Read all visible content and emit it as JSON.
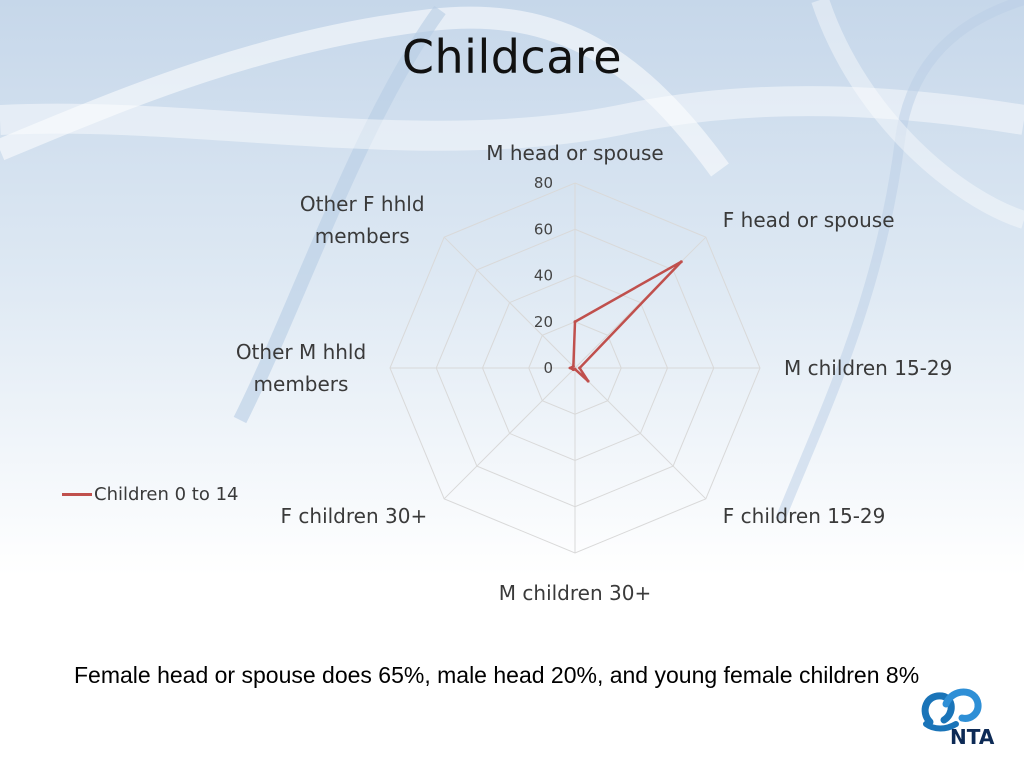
{
  "slide": {
    "title": "Childcare",
    "caption": "Female head or spouse does 65%, male head 20%, and young female children 8%",
    "logo_text": "NTA"
  },
  "colors": {
    "series": "#c0504d",
    "grid": "#d9d9d9",
    "logo_blue": "#1a74b8",
    "logo_dark": "#0d2a55"
  },
  "chart_data": {
    "type": "radar",
    "title": "",
    "categories": [
      "M head or spouse",
      "F head or spouse",
      "M children 15-29",
      "F children 15-29",
      "M children 30+",
      "F children 30+",
      "Other M hhld members",
      "Other F hhld members"
    ],
    "series": [
      {
        "name": "Children 0 to 14",
        "values": [
          20,
          65,
          2,
          8,
          0.5,
          1,
          2,
          1
        ]
      }
    ],
    "rlim": [
      0,
      80
    ],
    "ticks": [
      0,
      20,
      40,
      60,
      80
    ],
    "grid": true,
    "legend_position": "left"
  }
}
